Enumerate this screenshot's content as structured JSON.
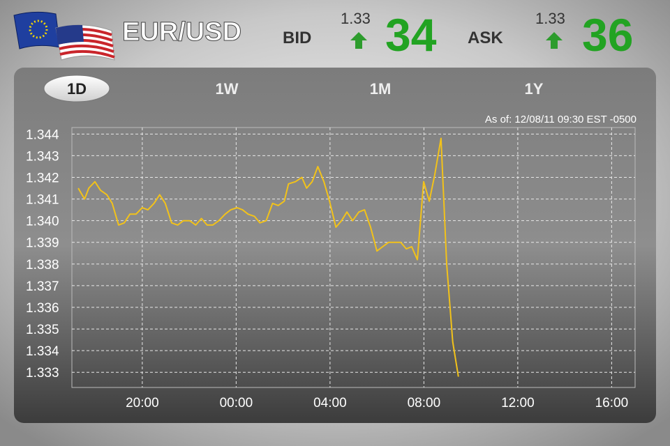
{
  "header": {
    "pair": "EUR/USD",
    "bid_label": "BID",
    "bid_prefix": "1.33",
    "bid_main": "34",
    "ask_label": "ASK",
    "ask_prefix": "1.33",
    "ask_main": "36"
  },
  "tabs": [
    {
      "label": "1D",
      "active": true
    },
    {
      "label": "1W"
    },
    {
      "label": "1M"
    },
    {
      "label": "1Y"
    }
  ],
  "as_of": "As of: 12/08/11 09:30 EST -0500",
  "chart_data": {
    "type": "line",
    "color": "#f2c21a",
    "grid": true,
    "x": [
      17.27,
      17.54,
      17.72,
      17.98,
      18.22,
      18.49,
      18.72,
      18.99,
      19.23,
      19.47,
      19.73,
      20,
      20.24,
      20.5,
      20.74,
      20.98,
      21.25,
      21.51,
      21.75,
      22.02,
      22.28,
      22.52,
      22.76,
      23,
      23.26,
      23.53,
      23.77,
      24.04,
      24.27,
      24.51,
      24.78,
      25.01,
      25.28,
      25.55,
      25.79,
      26.05,
      26.23,
      26.53,
      26.8,
      27,
      27.24,
      27.48,
      27.74,
      27.98,
      28.25,
      28.49,
      28.72,
      28.96,
      29.23,
      29.47,
      29.73,
      30,
      30.24,
      30.5,
      30.74,
      31.01,
      31.25,
      31.48,
      31.72,
      31.99,
      32.23,
      32.46,
      32.73,
      32.97,
      33.23,
      33.47
    ],
    "values": [
      1.3415,
      1.341,
      1.3415,
      1.3418,
      1.3414,
      1.3412,
      1.3408,
      1.3398,
      1.3399,
      1.3403,
      1.3403,
      1.3406,
      1.3405,
      1.3408,
      1.3412,
      1.3408,
      1.3399,
      1.3398,
      1.34,
      1.34,
      1.3398,
      1.3401,
      1.3398,
      1.3398,
      1.34,
      1.3403,
      1.3405,
      1.3406,
      1.3405,
      1.3403,
      1.3402,
      1.3399,
      1.34,
      1.3408,
      1.3407,
      1.3409,
      1.3417,
      1.3418,
      1.342,
      1.3415,
      1.3418,
      1.3425,
      1.3418,
      1.3409,
      1.3397,
      1.34,
      1.3404,
      1.34,
      1.3404,
      1.3405,
      1.3397,
      1.3386,
      1.3388,
      1.339,
      1.339,
      1.339,
      1.3387,
      1.3388,
      1.3382,
      1.3418,
      1.3409,
      1.3421,
      1.3438,
      1.338,
      1.3344,
      1.3328
    ],
    "xlim": [
      17,
      41
    ],
    "xticks": [
      {
        "value": 20,
        "label": "20:00"
      },
      {
        "value": 24,
        "label": "00:00"
      },
      {
        "value": 28,
        "label": "04:00"
      },
      {
        "value": 32,
        "label": "08:00"
      },
      {
        "value": 36,
        "label": "12:00"
      },
      {
        "value": 40,
        "label": "16:00"
      }
    ],
    "ylim": [
      1.3323,
      1.3443
    ],
    "yticks": [
      1.333,
      1.334,
      1.335,
      1.336,
      1.337,
      1.338,
      1.339,
      {
        "value": 1.34,
        "label": "1.340"
      },
      1.341,
      1.342,
      1.343,
      1.344
    ]
  }
}
